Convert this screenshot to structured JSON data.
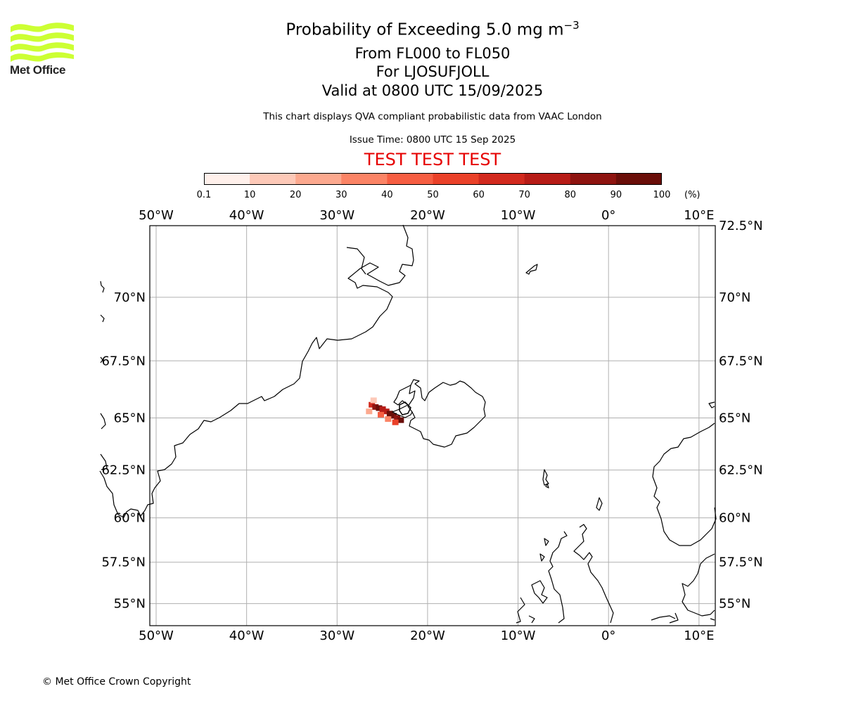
{
  "logo": {
    "text": "Met Office",
    "color": "#ccff33"
  },
  "title": {
    "main": "Probability of Exceeding 5.0 mg m",
    "main_superscript": "−3",
    "levels": "From FL000 to FL050",
    "volcano": "For LJOSUFJOLL",
    "valid": "Valid at 0800 UTC 15/09/2025"
  },
  "subtitle": "This chart displays QVA compliant probabilistic data from VAAC London",
  "issue_time": "Issue Time: 0800 UTC 15 Sep 2025",
  "test_banner": "TEST TEST TEST",
  "colorbar": {
    "ticks": [
      "0.1",
      "10",
      "20",
      "30",
      "40",
      "50",
      "60",
      "70",
      "80",
      "90",
      "100"
    ],
    "unit": "(%)",
    "colors": [
      "#fff0eb",
      "#fdc9b8",
      "#fca98f",
      "#fb8466",
      "#f65e42",
      "#ea4129",
      "#d22a1e",
      "#b71c17",
      "#8e1410",
      "#6a0e09"
    ]
  },
  "map": {
    "lon_labels": [
      "50°W",
      "40°W",
      "30°W",
      "20°W",
      "10°W",
      "0°",
      "10°E"
    ],
    "lat_labels": [
      "72.5°N",
      "70°N",
      "67.5°N",
      "65°N",
      "62.5°N",
      "60°N",
      "57.5°N",
      "55°N"
    ],
    "lon_range": [
      -50.7,
      11.8
    ],
    "lat_range": [
      53.6,
      72.5
    ],
    "grid": true,
    "coast_color": "#000000",
    "plume_cells": [
      {
        "lon": -26.2,
        "lat": 65.6,
        "prob": 60
      },
      {
        "lon": -25.8,
        "lat": 65.5,
        "prob": 85
      },
      {
        "lon": -25.4,
        "lat": 65.45,
        "prob": 90
      },
      {
        "lon": -25.0,
        "lat": 65.4,
        "prob": 75
      },
      {
        "lon": -24.6,
        "lat": 65.3,
        "prob": 70
      },
      {
        "lon": -24.2,
        "lat": 65.2,
        "prob": 95
      },
      {
        "lon": -23.8,
        "lat": 65.1,
        "prob": 90
      },
      {
        "lon": -23.4,
        "lat": 65.0,
        "prob": 85
      },
      {
        "lon": -23.0,
        "lat": 64.9,
        "prob": 100
      },
      {
        "lon": -26.5,
        "lat": 65.3,
        "prob": 20
      },
      {
        "lon": -25.2,
        "lat": 65.15,
        "prob": 45
      },
      {
        "lon": -24.4,
        "lat": 64.95,
        "prob": 35
      },
      {
        "lon": -26.0,
        "lat": 65.8,
        "prob": 10
      },
      {
        "lon": -23.6,
        "lat": 64.8,
        "prob": 55
      }
    ]
  },
  "copyright": "© Met Office Crown Copyright"
}
